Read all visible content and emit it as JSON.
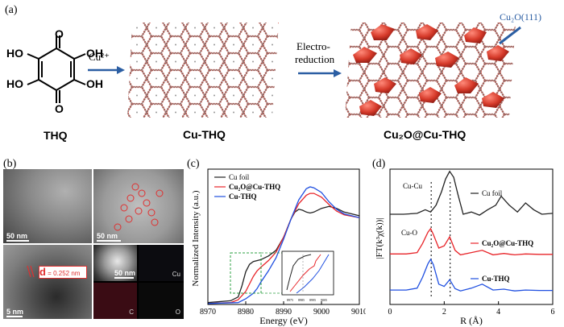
{
  "figure": {
    "panel_a": {
      "label": "(a)",
      "thq_label": "THQ",
      "cu_label": "Cu²⁺",
      "cuthq_label": "Cu-THQ",
      "electro_label_1": "Electro-",
      "electro_label_2": "reduction",
      "cu2o_facet_label": "Cu₂O(111)",
      "product_label": "Cu₂O@Cu-THQ",
      "mol_ho1": "HO",
      "mol_ho2": "HO",
      "mol_oh1": "OH",
      "mol_oh2": "OH",
      "mol_o_top": "O",
      "mol_o_bot": "O"
    },
    "panel_b": {
      "label": "(b)",
      "scale_1": "50 nm",
      "scale_2": "50 nm",
      "scale_3": "5 nm",
      "scale_4": "50 nm",
      "d_spacing_letter": "d",
      "d_spacing_value": " = 0.252 nm",
      "map_cu": "Cu",
      "map_c": "C",
      "map_o": "O"
    },
    "panel_c": {
      "label": "(c)",
      "legend": [
        "Cu foil",
        "Cu₂O@Cu-THQ",
        "Cu-THQ"
      ],
      "inset_ticks": [
        "8975",
        "8985",
        "8995",
        "9005"
      ]
    },
    "panel_d": {
      "label": "(d)",
      "legend": [
        "Cu foil",
        "Cu₂O@Cu-THQ",
        "Cu-THQ"
      ],
      "annot_cucu": "Cu-Cu",
      "annot_cuo": "Cu-O"
    }
  },
  "colors": {
    "black": "#222222",
    "red": "#e8252a",
    "blue": "#1f4fe0",
    "arrow": "#2b5ea3",
    "green": "#2ea043"
  },
  "chart_data": [
    {
      "type": "line",
      "panel": "c",
      "title": "",
      "xlabel": "Energy (eV)",
      "ylabel": "Normalized Intensity (a.u.)",
      "xlim": [
        8970,
        9010
      ],
      "ylim": [
        0,
        1.45
      ],
      "xticks": [
        "8970",
        "8980",
        "8990",
        "9000",
        "9010"
      ],
      "series": [
        {
          "name": "Cu foil",
          "color": "#222222",
          "x": [
            8970,
            8976,
            8978,
            8979,
            8980,
            8981,
            8982,
            8984,
            8986,
            8988,
            8990,
            8991,
            8992,
            8993,
            8994,
            8995,
            8996,
            8997,
            8998,
            9000,
            9002,
            9004,
            9006,
            9010
          ],
          "y": [
            0.02,
            0.04,
            0.08,
            0.2,
            0.35,
            0.43,
            0.46,
            0.48,
            0.52,
            0.58,
            0.72,
            0.82,
            0.92,
            0.99,
            1.02,
            1.01,
            0.99,
            0.98,
            0.99,
            1.03,
            1.05,
            1.03,
            0.99,
            0.95
          ]
        },
        {
          "name": "Cu₂O@Cu-THQ",
          "color": "#e8252a",
          "x": [
            8970,
            8976,
            8978,
            8980,
            8981,
            8982,
            8983,
            8984,
            8986,
            8988,
            8990,
            8992,
            8994,
            8996,
            8997,
            8998,
            9000,
            9002,
            9004,
            9006,
            9010
          ],
          "y": [
            0.01,
            0.02,
            0.05,
            0.14,
            0.22,
            0.3,
            0.36,
            0.4,
            0.47,
            0.56,
            0.72,
            0.92,
            1.08,
            1.17,
            1.19,
            1.19,
            1.15,
            1.07,
            1.0,
            0.96,
            0.93
          ]
        },
        {
          "name": "Cu-THQ",
          "color": "#1f4fe0",
          "x": [
            8970,
            8978,
            8980,
            8982,
            8983,
            8984,
            8986,
            8988,
            8990,
            8992,
            8994,
            8996,
            8997,
            8998,
            9000,
            9002,
            9004,
            9006,
            9010
          ],
          "y": [
            0.01,
            0.02,
            0.06,
            0.12,
            0.17,
            0.24,
            0.36,
            0.5,
            0.7,
            0.92,
            1.12,
            1.24,
            1.26,
            1.25,
            1.2,
            1.1,
            1.02,
            0.97,
            0.93
          ]
        }
      ]
    },
    {
      "type": "line",
      "panel": "d",
      "title": "",
      "xlabel": "R (Å)",
      "ylabel": "|FT(k³χ(k))|",
      "xlim": [
        0,
        6
      ],
      "ylim": [
        0,
        3.0
      ],
      "xticks": [
        "0",
        "2",
        "4",
        "6"
      ],
      "dotted_lines_x": [
        1.52,
        2.22
      ],
      "series": [
        {
          "name": "Cu foil",
          "color": "#222222",
          "x": [
            0,
            0.5,
            1.0,
            1.3,
            1.5,
            1.7,
            1.9,
            2.05,
            2.2,
            2.35,
            2.5,
            2.7,
            3.0,
            3.3,
            3.6,
            3.9,
            4.1,
            4.4,
            4.7,
            5.0,
            5.3,
            5.6,
            6.0
          ],
          "y": [
            2.0,
            2.0,
            2.02,
            2.1,
            2.05,
            2.2,
            2.5,
            2.78,
            2.95,
            2.82,
            2.45,
            2.0,
            2.05,
            1.98,
            2.1,
            2.2,
            2.4,
            2.2,
            2.05,
            2.25,
            2.1,
            2.0,
            2.02
          ]
        },
        {
          "name": "Cu₂O@Cu-THQ",
          "color": "#e8252a",
          "x": [
            0,
            0.6,
            1.0,
            1.2,
            1.4,
            1.5,
            1.6,
            1.8,
            2.0,
            2.2,
            2.4,
            2.6,
            3.0,
            3.4,
            3.8,
            4.2,
            4.6,
            5.0,
            5.5,
            6.0
          ],
          "y": [
            1.12,
            1.12,
            1.15,
            1.35,
            1.6,
            1.68,
            1.55,
            1.25,
            1.3,
            1.5,
            1.2,
            1.1,
            1.15,
            1.2,
            1.1,
            1.13,
            1.1,
            1.12,
            1.11,
            1.11
          ]
        },
        {
          "name": "Cu-THQ",
          "color": "#1f4fe0",
          "x": [
            0,
            0.6,
            1.0,
            1.2,
            1.4,
            1.5,
            1.6,
            1.8,
            2.0,
            2.2,
            2.4,
            2.6,
            3.0,
            3.4,
            3.8,
            4.2,
            4.6,
            5.0,
            5.5,
            6.0
          ],
          "y": [
            0.32,
            0.32,
            0.36,
            0.6,
            0.9,
            1.0,
            0.88,
            0.45,
            0.4,
            0.55,
            0.35,
            0.3,
            0.36,
            0.45,
            0.32,
            0.34,
            0.3,
            0.32,
            0.31,
            0.31
          ]
        }
      ]
    }
  ]
}
